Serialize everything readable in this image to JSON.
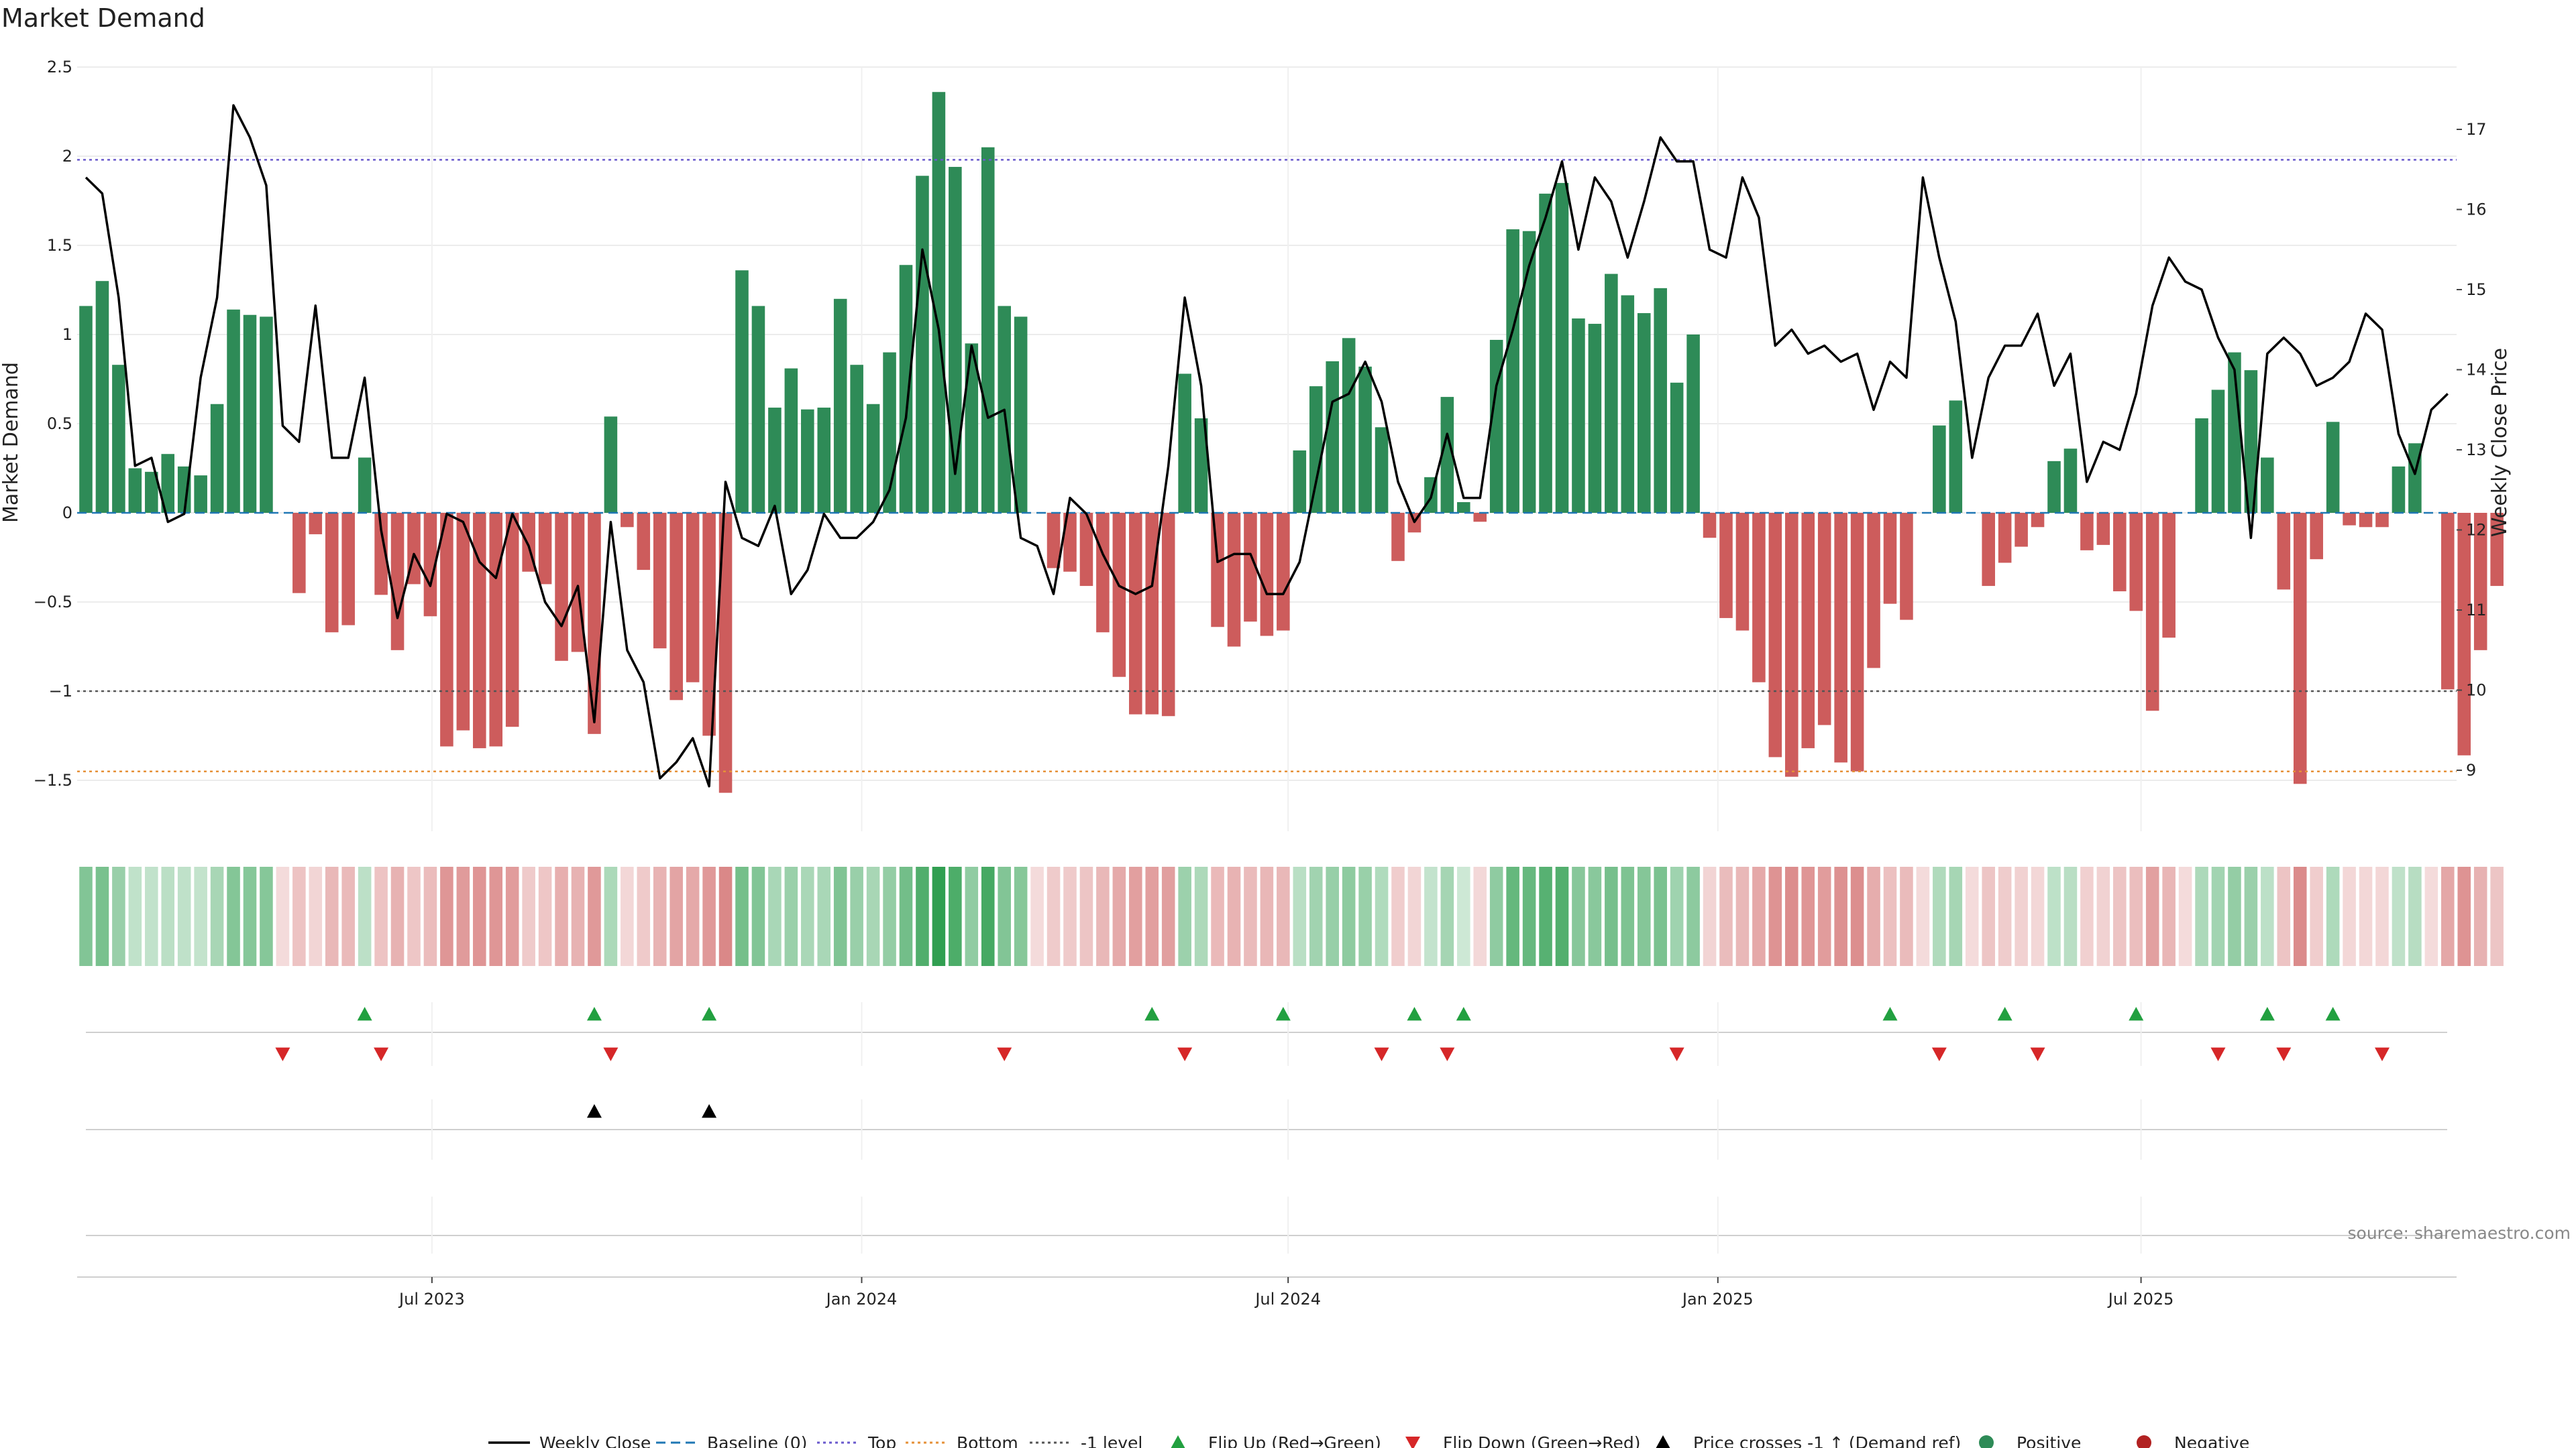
{
  "chart_data": {
    "type": "bar",
    "title": "Market Demand",
    "ylabel": "Market Demand",
    "y2label": "Weekly Close Price",
    "ylim": [
      -1.8,
      2.5
    ],
    "y2lim": [
      8.2,
      17.8
    ],
    "y_ticks": [
      2.5,
      2,
      1.5,
      1,
      0.5,
      0,
      -0.5,
      -1,
      -1.5
    ],
    "y_tick_labels": [
      "2.5",
      "2",
      "1.5",
      "1",
      "0.5",
      "0",
      "−0.5",
      "−1",
      "−1.5"
    ],
    "y2_ticks": [
      17,
      16,
      15,
      14,
      13,
      12,
      11,
      10,
      9
    ],
    "y2_tick_labels": [
      "17",
      "16",
      "15",
      "14",
      "13",
      "12",
      "11",
      "10",
      "9"
    ],
    "x_ticks": [
      {
        "label": "Jul 2023",
        "index": 21.1
      },
      {
        "label": "Jan 2024",
        "index": 47.3
      },
      {
        "label": "Jul 2024",
        "index": 73.3
      },
      {
        "label": "Jan 2025",
        "index": 99.5
      },
      {
        "label": "Jul 2025",
        "index": 125.3
      }
    ],
    "reference_lines": {
      "top": 1.98,
      "bottom": -1.45,
      "minus_one": -1.0,
      "baseline": 0
    },
    "colors": {
      "positive": "#2e8b57",
      "negative": "#cd5c5c",
      "price": "#000000",
      "top": "#6a5acd",
      "bottom": "#e69138",
      "minus_one": "#555555",
      "baseline": "#1f77b4",
      "flip_up": "#22a040",
      "flip_down": "#d62728",
      "cross": "#000000"
    },
    "demand": [
      1.16,
      1.3,
      0.83,
      0.25,
      0.23,
      0.33,
      0.26,
      0.21,
      0.61,
      1.14,
      1.11,
      1.1,
      0,
      -0.45,
      -0.12,
      -0.67,
      -0.63,
      0.31,
      -0.46,
      -0.77,
      -0.4,
      -0.58,
      -1.31,
      -1.22,
      -1.32,
      -1.31,
      -1.2,
      -0.33,
      -0.4,
      -0.83,
      -0.78,
      -1.24,
      0.54,
      -0.08,
      -0.32,
      -0.76,
      -1.05,
      -0.95,
      -1.25,
      -1.57,
      1.36,
      1.16,
      0.59,
      0.81,
      0.58,
      0.59,
      1.2,
      0.83,
      0.61,
      0.9,
      1.39,
      1.89,
      2.36,
      1.94,
      0.95,
      2.05,
      1.16,
      1.1,
      0,
      -0.31,
      -0.33,
      -0.41,
      -0.67,
      -0.92,
      -1.13,
      -1.13,
      -1.14,
      0.78,
      0.53,
      -0.64,
      -0.75,
      -0.61,
      -0.69,
      -0.66,
      0.35,
      0.71,
      0.85,
      0.98,
      0.82,
      0.48,
      -0.27,
      -0.11,
      0.2,
      0.65,
      0.06,
      -0.05,
      0.97,
      1.59,
      1.58,
      1.79,
      1.85,
      1.09,
      1.06,
      1.34,
      1.22,
      1.12,
      1.26,
      0.73,
      1.0,
      -0.14,
      -0.59,
      -0.66,
      -0.95,
      -1.37,
      -1.48,
      -1.32,
      -1.19,
      -1.4,
      -1.45,
      -0.87,
      -0.51,
      -0.6,
      0,
      0.49,
      0.63,
      0,
      -0.41,
      -0.28,
      -0.19,
      -0.08,
      0.29,
      0.36,
      -0.21,
      -0.18,
      -0.44,
      -0.55,
      -1.11,
      -0.7,
      0,
      0.53,
      0.69,
      0.9,
      0.8,
      0.31,
      -0.43,
      -1.52,
      -0.26,
      0.51,
      -0.07,
      -0.08,
      -0.08,
      0.26,
      0.39,
      0,
      -0.99,
      -1.36,
      -0.77,
      -0.41
    ],
    "price": [
      16.4,
      16.2,
      14.9,
      12.8,
      12.9,
      12.1,
      12.2,
      13.9,
      14.9,
      17.3,
      16.9,
      16.3,
      13.3,
      13.1,
      14.8,
      12.9,
      12.9,
      13.9,
      12.0,
      10.9,
      11.7,
      11.3,
      12.2,
      12.1,
      11.6,
      11.4,
      12.2,
      11.8,
      11.1,
      10.8,
      11.3,
      9.6,
      12.1,
      10.5,
      10.1,
      8.9,
      9.1,
      9.4,
      8.8,
      12.6,
      11.9,
      11.8,
      12.3,
      11.2,
      11.5,
      12.2,
      11.9,
      11.9,
      12.1,
      12.5,
      13.4,
      15.5,
      14.5,
      12.7,
      14.3,
      13.4,
      13.5,
      11.9,
      11.8,
      11.2,
      12.4,
      12.2,
      11.7,
      11.3,
      11.2,
      11.3,
      12.8,
      14.9,
      13.8,
      11.6,
      11.7,
      11.7,
      11.2,
      11.2,
      11.6,
      12.6,
      13.6,
      13.7,
      14.1,
      13.6,
      12.6,
      12.1,
      12.4,
      13.2,
      12.4,
      12.4,
      13.8,
      14.5,
      15.3,
      15.9,
      16.6,
      15.5,
      16.4,
      16.1,
      15.4,
      16.1,
      16.9,
      16.6,
      16.6,
      15.5,
      15.4,
      16.4,
      15.9,
      14.3,
      14.5,
      14.2,
      14.3,
      14.1,
      14.2,
      13.5,
      14.1,
      13.9,
      16.4,
      15.4,
      14.6,
      12.9,
      13.9,
      14.3,
      14.3,
      14.7,
      13.8,
      14.2,
      12.6,
      13.1,
      13.0,
      13.7,
      14.8,
      15.4,
      15.1,
      15.0,
      14.4,
      14.0,
      11.9,
      14.2,
      14.4,
      14.2,
      13.8,
      13.9,
      14.1,
      14.7,
      14.5,
      13.2,
      12.7,
      13.5,
      13.7
    ],
    "flip_up": [
      17,
      31,
      38,
      65,
      73,
      81,
      84,
      110,
      117,
      125,
      133,
      137
    ],
    "flip_down": [
      12,
      18,
      32,
      56,
      67,
      79,
      83,
      97,
      113,
      119,
      130,
      134,
      140
    ],
    "price_cross": [
      31,
      38
    ],
    "legend": [
      {
        "label": "Weekly Close",
        "kind": "line",
        "color": "#000000"
      },
      {
        "label": "Baseline (0)",
        "kind": "dash",
        "color": "#1f77b4"
      },
      {
        "label": "Top",
        "kind": "dot",
        "color": "#6a5acd"
      },
      {
        "label": "Bottom",
        "kind": "dot",
        "color": "#e69138"
      },
      {
        "label": "-1 level",
        "kind": "dot",
        "color": "#555555"
      },
      {
        "label": "Flip Up (Red→Green)",
        "kind": "up",
        "color": "#22a040"
      },
      {
        "label": "Flip Down (Green→Red)",
        "kind": "down",
        "color": "#d62728"
      },
      {
        "label": "Price crosses -1 ↑ (Demand ref)",
        "kind": "up",
        "color": "#000000"
      },
      {
        "label": "Positive",
        "kind": "circle",
        "color": "#2e8b57"
      },
      {
        "label": "Negative",
        "kind": "circle",
        "color": "#b22222"
      }
    ],
    "source": "source: sharemaestro.com"
  }
}
